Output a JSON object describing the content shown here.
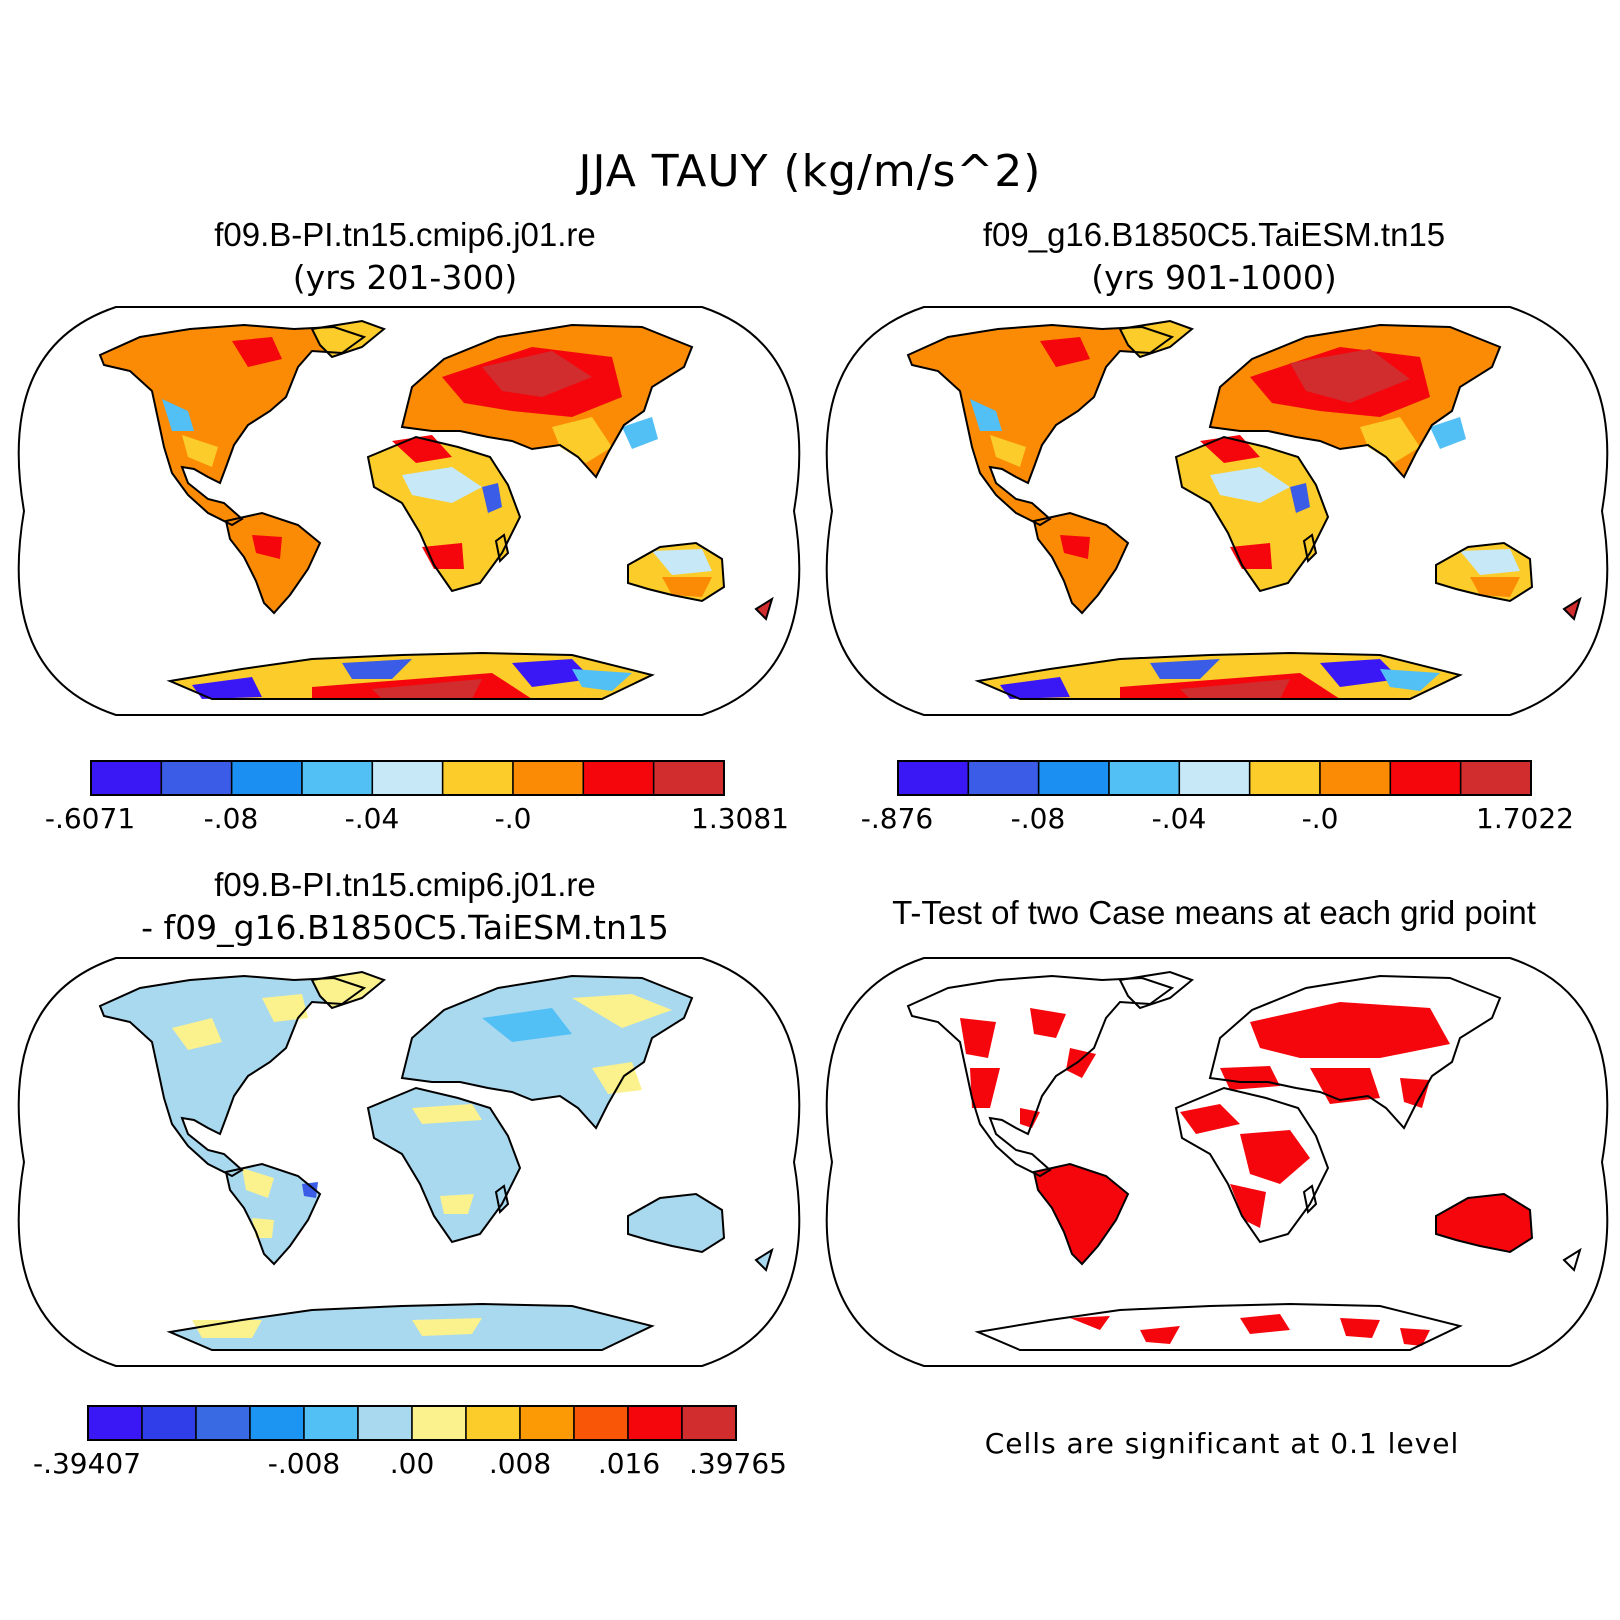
{
  "main_title": "JJA TAUY (kg/m/s^2)",
  "colors": {
    "blue_dark": "#3a17f5",
    "blue_med": "#3a5ce6",
    "blue_bright": "#1c8ff2",
    "blue_light": "#52bff5",
    "blue_pale": "#c7e8f7",
    "blue_pale2": "#a9d9ef",
    "yellow_pale": "#fbf18d",
    "yellow": "#fbcc2a",
    "orange": "#fb8a05",
    "orange_red": "#fa5608",
    "red": "#f5060c",
    "red_dark": "#d12c2e",
    "signif": "#f5060c"
  },
  "panels": [
    {
      "id": "case1",
      "title": "f09.B-PI.tn15.cmip6.j01.re",
      "subtitle": "(yrs 201-300)",
      "colorbar": {
        "ticks": [
          "-.6071",
          "-.08",
          "-.04",
          "-.0",
          "1.3081"
        ],
        "colors": [
          "#3a17f5",
          "#3a5ce6",
          "#1c8ff2",
          "#52bff5",
          "#c7e8f7",
          "#fbcc2a",
          "#fb8a05",
          "#f5060c",
          "#d12c2e"
        ]
      }
    },
    {
      "id": "case2",
      "title": "f09_g16.B1850C5.TaiESM.tn15",
      "subtitle": "(yrs 901-1000)",
      "colorbar": {
        "ticks": [
          "-.876",
          "-.08",
          "-.04",
          "-.0",
          "1.7022"
        ],
        "colors": [
          "#3a17f5",
          "#3a5ce6",
          "#1c8ff2",
          "#52bff5",
          "#c7e8f7",
          "#fbcc2a",
          "#fb8a05",
          "#f5060c",
          "#d12c2e"
        ]
      }
    },
    {
      "id": "diff",
      "title": "f09.B-PI.tn15.cmip6.j01.re",
      "subtitle": "- f09_g16.B1850C5.TaiESM.tn15",
      "colorbar": {
        "ticks": [
          "-.39407",
          "-.008",
          ".00",
          ".008",
          ".016",
          ".39765"
        ],
        "colors": [
          "#3a17f5",
          "#2f3ee8",
          "#3a6ae3",
          "#1c95f2",
          "#52bff5",
          "#a9d9ef",
          "#fbf18d",
          "#fbcc2a",
          "#fb9a05",
          "#fa5608",
          "#f5060c",
          "#d12c2e"
        ]
      }
    },
    {
      "id": "ttest",
      "title": "T-Test of two Case means at each grid point",
      "note": "Cells are significant at 0.1 level"
    }
  ]
}
